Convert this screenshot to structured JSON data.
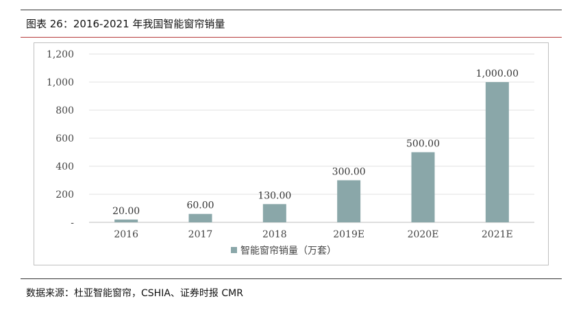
{
  "figure": {
    "title": "图表 26：2016-2021 年我国智能窗帘销量",
    "source": "数据来源：杜亚智能窗帘，CSHIA、证券时报 CMR"
  },
  "chart_data": {
    "type": "bar",
    "categories": [
      "2016",
      "2017",
      "2018",
      "2019E",
      "2020E",
      "2021E"
    ],
    "series": [
      {
        "name": "智能窗帘销量（万套）",
        "values": [
          20,
          60,
          130,
          300,
          500,
          1000
        ],
        "color": "#8aa7a9"
      }
    ],
    "data_labels": [
      "20.00",
      "60.00",
      "130.00",
      "300.00",
      "500.00",
      "1,000.00"
    ],
    "yticks": [
      0,
      200,
      400,
      600,
      800,
      1000,
      1200
    ],
    "ytick_labels": [
      "-",
      "200",
      "400",
      "600",
      "800",
      "1,000",
      "1,200"
    ],
    "ylim": [
      0,
      1200
    ],
    "grid": true,
    "legend_position": "bottom-center"
  }
}
